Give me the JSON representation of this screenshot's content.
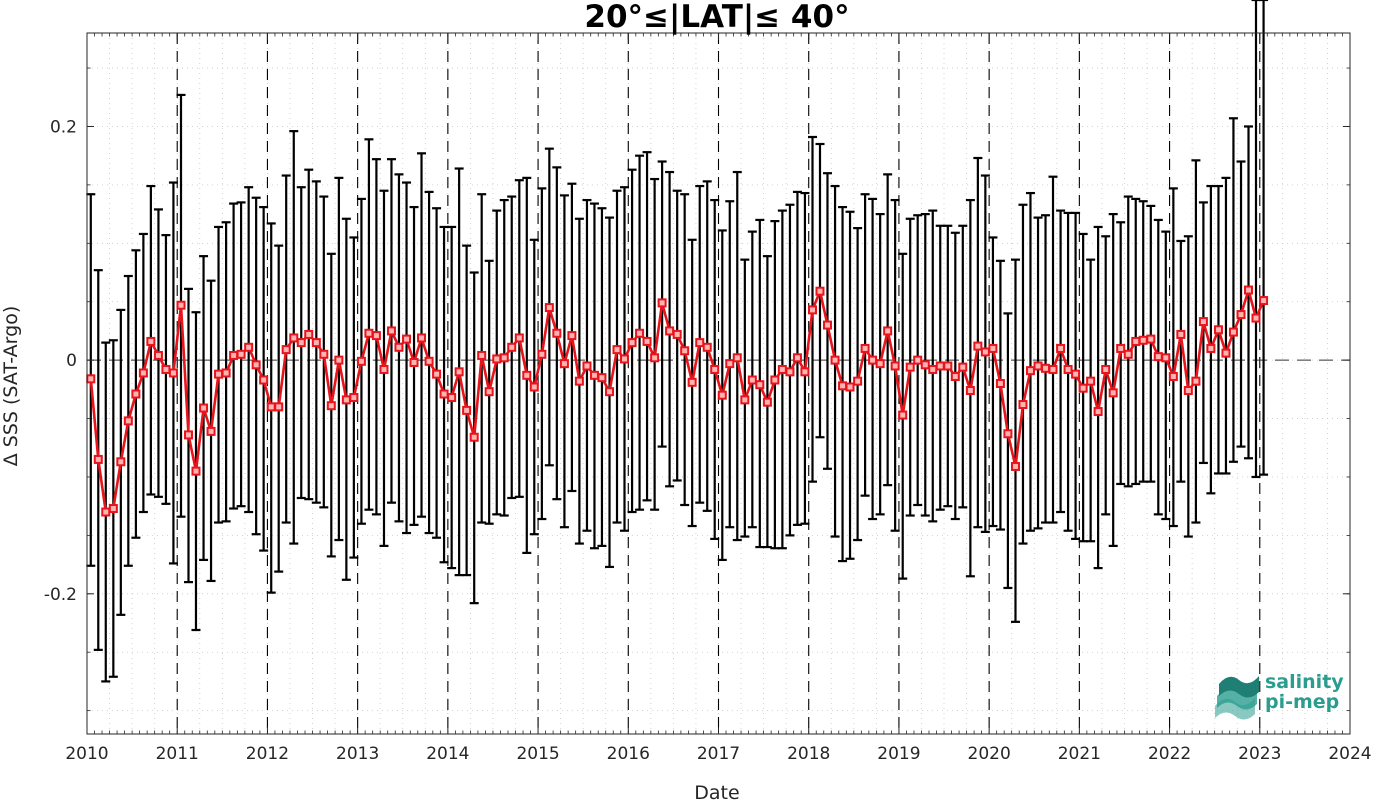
{
  "chart_data": {
    "type": "line",
    "title": "20°≤|LAT|≤ 40°",
    "xlabel": "Date",
    "ylabel": "Δ SSS (SAT-Argo)",
    "xlim": [
      2010,
      2024
    ],
    "ylim": [
      -0.32,
      0.28
    ],
    "x_ticks": [
      "2010",
      "2011",
      "2012",
      "2013",
      "2014",
      "2015",
      "2016",
      "2017",
      "2018",
      "2019",
      "2020",
      "2021",
      "2022",
      "2023",
      "2024"
    ],
    "y_ticks": [
      {
        "value": -0.2,
        "label": "-0.2"
      },
      {
        "value": 0,
        "label": "0"
      },
      {
        "value": 0.2,
        "label": "0.2"
      }
    ],
    "grid": true,
    "year_dividers": "dashed vertical lines at each January",
    "zero_line": "dashed horizontal line at 0",
    "line_color": "#e8141c",
    "errorbar_color": "#000000",
    "series": [
      {
        "x": [
          2010.042,
          2010.125,
          2010.208,
          2010.292,
          2010.375,
          2010.458,
          2010.542,
          2010.625,
          2010.708,
          2010.792,
          2010.875,
          2010.958,
          2011.042,
          2011.125,
          2011.208,
          2011.292,
          2011.375,
          2011.458,
          2011.542,
          2011.625,
          2011.708,
          2011.792,
          2011.875,
          2011.958,
          2012.042,
          2012.125,
          2012.208,
          2012.292,
          2012.375,
          2012.458,
          2012.542,
          2012.625,
          2012.708,
          2012.792,
          2012.875,
          2012.958,
          2013.042,
          2013.125,
          2013.208,
          2013.292,
          2013.375,
          2013.458,
          2013.542,
          2013.625,
          2013.708,
          2013.792,
          2013.875,
          2013.958,
          2014.042,
          2014.125,
          2014.208,
          2014.292,
          2014.375,
          2014.458,
          2014.542,
          2014.625,
          2014.708,
          2014.792,
          2014.875,
          2014.958,
          2015.042,
          2015.125,
          2015.208,
          2015.292,
          2015.375,
          2015.458,
          2015.542,
          2015.625,
          2015.708,
          2015.792,
          2015.875,
          2015.958,
          2016.042,
          2016.125,
          2016.208,
          2016.292,
          2016.375,
          2016.458,
          2016.542,
          2016.625,
          2016.708,
          2016.792,
          2016.875,
          2016.958,
          2017.042,
          2017.125,
          2017.208,
          2017.292,
          2017.375,
          2017.458,
          2017.542,
          2017.625,
          2017.708,
          2017.792,
          2017.875,
          2017.958,
          2018.042,
          2018.125,
          2018.208,
          2018.292,
          2018.375,
          2018.458,
          2018.542,
          2018.625,
          2018.708,
          2018.792,
          2018.875,
          2018.958,
          2019.042,
          2019.125,
          2019.208,
          2019.292,
          2019.375,
          2019.458,
          2019.542,
          2019.625,
          2019.708,
          2019.792,
          2019.875,
          2019.958,
          2020.042,
          2020.125,
          2020.208,
          2020.292,
          2020.375,
          2020.458,
          2020.542,
          2020.625,
          2020.708,
          2020.792,
          2020.875,
          2020.958,
          2021.042,
          2021.125,
          2021.208,
          2021.292,
          2021.375,
          2021.458,
          2021.542,
          2021.625,
          2021.708,
          2021.792,
          2021.875,
          2021.958,
          2022.042,
          2022.125,
          2022.208,
          2022.292,
          2022.375,
          2022.458,
          2022.542,
          2022.625,
          2022.708,
          2022.792,
          2022.875,
          2022.958,
          2023.042
        ],
        "y": [
          -0.016,
          -0.085,
          -0.13,
          -0.127,
          -0.087,
          -0.052,
          -0.029,
          -0.011,
          0.016,
          0.004,
          -0.008,
          -0.011,
          0.047,
          -0.064,
          -0.095,
          -0.041,
          -0.061,
          -0.012,
          -0.011,
          0.004,
          0.005,
          0.011,
          -0.004,
          -0.017,
          -0.04,
          -0.04,
          0.009,
          0.019,
          0.015,
          0.022,
          0.015,
          0.005,
          -0.039,
          0.0,
          -0.034,
          -0.032,
          -0.001,
          0.023,
          0.021,
          -0.008,
          0.025,
          0.011,
          0.018,
          -0.002,
          0.019,
          -0.001,
          -0.012,
          -0.029,
          -0.032,
          -0.01,
          -0.043,
          -0.066,
          0.004,
          -0.027,
          0.001,
          0.002,
          0.011,
          0.019,
          -0.013,
          -0.023,
          0.005,
          0.045,
          0.023,
          -0.003,
          0.021,
          -0.018,
          -0.005,
          -0.013,
          -0.015,
          -0.027,
          0.009,
          0.001,
          0.015,
          0.023,
          0.016,
          0.002,
          0.049,
          0.025,
          0.022,
          0.008,
          -0.019,
          0.015,
          0.011,
          -0.008,
          -0.03,
          -0.003,
          0.002,
          -0.034,
          -0.017,
          -0.021,
          -0.036,
          -0.017,
          -0.008,
          -0.01,
          0.002,
          -0.01,
          0.043,
          0.059,
          0.03,
          0.0,
          -0.022,
          -0.023,
          -0.018,
          0.01,
          0.0,
          -0.003,
          0.025,
          -0.005,
          -0.047,
          -0.006,
          0.0,
          -0.004,
          -0.008,
          -0.005,
          -0.005,
          -0.014,
          -0.006,
          -0.026,
          0.012,
          0.007,
          0.01,
          -0.02,
          -0.063,
          -0.091,
          -0.038,
          -0.009,
          -0.005,
          -0.007,
          -0.008,
          0.01,
          -0.008,
          -0.012,
          -0.024,
          -0.018,
          -0.044,
          -0.008,
          -0.028,
          0.01,
          0.005,
          0.016,
          0.017,
          0.018,
          0.003,
          0.002,
          -0.014,
          0.022,
          -0.026,
          -0.018,
          0.033,
          0.01,
          0.026,
          0.006,
          0.024,
          0.039,
          0.06,
          0.036,
          0.051
        ],
        "err_low": [
          -0.176,
          -0.248,
          -0.275,
          -0.271,
          -0.218,
          -0.176,
          -0.152,
          -0.13,
          -0.115,
          -0.117,
          -0.123,
          -0.174,
          -0.134,
          -0.19,
          -0.231,
          -0.171,
          -0.189,
          -0.139,
          -0.138,
          -0.127,
          -0.125,
          -0.13,
          -0.149,
          -0.163,
          -0.199,
          -0.181,
          -0.139,
          -0.157,
          -0.118,
          -0.119,
          -0.122,
          -0.126,
          -0.168,
          -0.154,
          -0.188,
          -0.169,
          -0.14,
          -0.128,
          -0.132,
          -0.159,
          -0.122,
          -0.138,
          -0.148,
          -0.141,
          -0.134,
          -0.148,
          -0.152,
          -0.173,
          -0.178,
          -0.184,
          -0.184,
          -0.208,
          -0.139,
          -0.14,
          -0.132,
          -0.133,
          -0.118,
          -0.117,
          -0.165,
          -0.149,
          -0.136,
          -0.09,
          -0.119,
          -0.143,
          -0.112,
          -0.157,
          -0.146,
          -0.161,
          -0.159,
          -0.177,
          -0.139,
          -0.146,
          -0.13,
          -0.128,
          -0.12,
          -0.128,
          -0.074,
          -0.108,
          -0.103,
          -0.124,
          -0.142,
          -0.122,
          -0.129,
          -0.153,
          -0.171,
          -0.143,
          -0.154,
          -0.151,
          -0.143,
          -0.16,
          -0.16,
          -0.161,
          -0.161,
          -0.15,
          -0.141,
          -0.14,
          -0.104,
          -0.066,
          -0.093,
          -0.151,
          -0.172,
          -0.17,
          -0.154,
          -0.116,
          -0.136,
          -0.132,
          -0.107,
          -0.146,
          -0.187,
          -0.133,
          -0.124,
          -0.133,
          -0.138,
          -0.128,
          -0.125,
          -0.136,
          -0.126,
          -0.185,
          -0.143,
          -0.147,
          -0.142,
          -0.145,
          -0.195,
          -0.224,
          -0.157,
          -0.146,
          -0.144,
          -0.139,
          -0.139,
          -0.13,
          -0.146,
          -0.153,
          -0.155,
          -0.155,
          -0.178,
          -0.132,
          -0.159,
          -0.106,
          -0.108,
          -0.106,
          -0.104,
          -0.104,
          -0.132,
          -0.136,
          -0.142,
          -0.104,
          -0.151,
          -0.139,
          -0.088,
          -0.114,
          -0.097,
          -0.097,
          -0.087,
          -0.074,
          -0.084,
          -0.1,
          -0.098
        ],
        "err_high": [
          0.142,
          0.077,
          0.015,
          0.017,
          0.043,
          0.072,
          0.094,
          0.108,
          0.149,
          0.129,
          0.107,
          0.152,
          0.227,
          0.061,
          0.041,
          0.089,
          0.068,
          0.114,
          0.118,
          0.134,
          0.135,
          0.148,
          0.139,
          0.131,
          0.117,
          0.098,
          0.158,
          0.196,
          0.148,
          0.163,
          0.153,
          0.14,
          0.091,
          0.156,
          0.121,
          0.105,
          0.138,
          0.189,
          0.172,
          0.145,
          0.172,
          0.159,
          0.152,
          0.131,
          0.177,
          0.144,
          0.13,
          0.114,
          0.114,
          0.164,
          0.098,
          0.075,
          0.142,
          0.085,
          0.128,
          0.137,
          0.14,
          0.154,
          0.156,
          0.103,
          0.147,
          0.181,
          0.165,
          0.141,
          0.151,
          0.121,
          0.137,
          0.134,
          0.13,
          0.122,
          0.145,
          0.148,
          0.163,
          0.175,
          0.178,
          0.155,
          0.17,
          0.161,
          0.145,
          0.142,
          0.103,
          0.149,
          0.153,
          0.137,
          0.111,
          0.136,
          0.161,
          0.086,
          0.11,
          0.12,
          0.089,
          0.119,
          0.128,
          0.133,
          0.144,
          0.143,
          0.191,
          0.185,
          0.16,
          0.149,
          0.131,
          0.127,
          0.113,
          0.142,
          0.138,
          0.125,
          0.159,
          0.137,
          0.091,
          0.121,
          0.124,
          0.125,
          0.128,
          0.115,
          0.115,
          0.109,
          0.115,
          0.137,
          0.173,
          0.158,
          0.105,
          0.085,
          0.04,
          0.086,
          0.133,
          0.143,
          0.122,
          0.124,
          0.157,
          0.128,
          0.126,
          0.126,
          0.108,
          0.086,
          0.114,
          0.106,
          0.125,
          0.118,
          0.14,
          0.138,
          0.136,
          0.132,
          0.12,
          0.11,
          0.147,
          0.102,
          0.106,
          0.171,
          0.135,
          0.149,
          0.149,
          0.156,
          0.207,
          0.17,
          0.2
        ]
      }
    ]
  },
  "logo": {
    "line1": "salinity",
    "line2": "pi-mep",
    "color": "#2a9d8f"
  }
}
